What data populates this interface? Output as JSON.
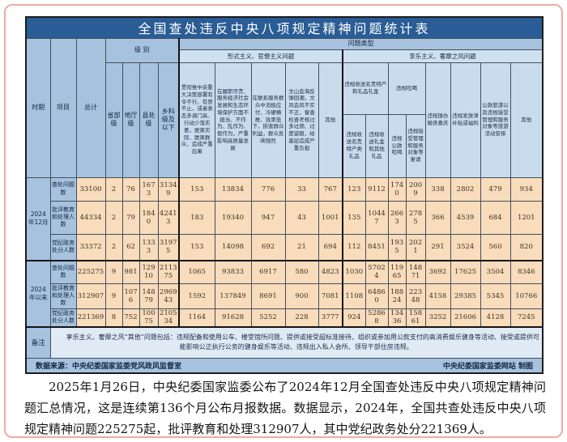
{
  "table": {
    "title": "全国查处违反中央八项规定精神问题统计表",
    "header": {
      "period": "时期",
      "item": "项目",
      "total": "总计",
      "level": "级 别",
      "problem_type": "问题类型",
      "levels": [
        "省部级",
        "地厅级",
        "县处级",
        "乡科级及以下"
      ],
      "formalism_group": "形式主义、官僚主义问题",
      "hedonism_group": "享乐主义、奢靡之风问题",
      "formalism_cols": [
        "贯彻党中央重大决策部署有令不行、有禁不止，或者表态多调门高、行动少落实差，脱离实际、脱离群众，造成严重后果",
        "在履职尽责、服务经济社会发展和生态环境保护方面不担当、不作为、乱作为、假作为，严重影响高质量发展",
        "在联系服务群众中消极应付、冷硬横推、效率低下，损害群众利益，群众反映强烈",
        "文山会海反弹回潮，文风会风不实不正，督查检查考核过多过频、过度留痕，给基层造成严重负担",
        "其他"
      ],
      "gift_group": "违规收送名贵特产和礼品礼金",
      "gift_cols": [
        "违规收送名贵特产类礼品",
        "违规收送礼金和其他礼品"
      ],
      "dining_group": "违规吃喝",
      "dining_cols": [
        "违规公款吃喝",
        "违规接受管理和服务对象等宴请"
      ],
      "hedonism_cols": [
        "违规操办婚丧喜庆",
        "违规发放津补贴或福利",
        "公款旅游以及违规接受管理和服务对象等旅游活动安排",
        "其他"
      ]
    },
    "row_groups": [
      {
        "period": "2024年12月",
        "rows": [
          {
            "label": "查处问题数",
            "values": [
              "33100",
              "2",
              "76",
              "1673",
              "31349",
              "153",
              "13834",
              "776",
              "33",
              "767",
              "123",
              "9112",
              "1740",
              "2009",
              "338",
              "2802",
              "479",
              "934"
            ]
          },
          {
            "label": "批评教育和处理人数",
            "values": [
              "44334",
              "2",
              "79",
              "1840",
              "42413",
              "183",
              "19340",
              "947",
              "43",
              "1001",
              "135",
              "10447",
              "2663",
              "2785",
              "366",
              "4539",
              "684",
              "1201"
            ]
          },
          {
            "label": "党纪政务处分人数",
            "values": [
              "33372",
              "2",
              "62",
              "1333",
              "31975",
              "153",
              "14098",
              "692",
              "21",
              "694",
              "112",
              "8451",
              "1935",
              "2021",
              "291",
              "3524",
              "560",
              "820"
            ]
          }
        ]
      },
      {
        "period": "2024年以来",
        "rows": [
          {
            "label": "查处问题数",
            "values": [
              "225275",
              "9",
              "981",
              "12910",
              "211375",
              "1065",
              "93833",
              "6917",
              "580",
              "4823",
              "1030",
              "57024",
              "11965",
              "14871",
              "3692",
              "17625",
              "3504",
              "8346"
            ]
          },
          {
            "label": "批评教育和处理人数",
            "values": [
              "312907",
              "9",
              "1076",
              "14879",
              "296943",
              "1592",
              "137849",
              "8691",
              "900",
              "7081",
              "1108",
              "64860",
              "18824",
              "22348",
              "4158",
              "29385",
              "5345",
              "10766"
            ]
          },
          {
            "label": "党纪政务处分人数",
            "values": [
              "221369",
              "8",
              "752",
              "10075",
              "210534",
              "1164",
              "91628",
              "5252",
              "228",
              "3777",
              "924",
              "52868",
              "13436",
              "15861",
              "3252",
              "21606",
              "4128",
              "7245"
            ]
          }
        ]
      }
    ],
    "note_label": "备注",
    "note_text": "享乐主义、奢靡之风“其他”问题包括：违规配备和使用公车、楼堂馆所问题、提供或接受超标准接待、组织或参加用公款支付的高消费娱乐健身等活动、接受或提供可能影响公正执行公务的健身娱乐等活动、违规出入私人会所、领导干部住房违规。",
    "source_left": "数据来源：中央纪委国家监委党风政风监督室",
    "source_right": "中央纪委国家监委网站 制图"
  },
  "article": {
    "paragraph": "2025年1月26日，中央纪委国家监委公布了2024年12月全国查处违反中央八项规定精神问题汇总情况，这是连续第136个月公布月报数据。数据显示，2024年，全国共查处违反中央八项规定精神问题225275起，批评教育和处理312907人，其中党纪政务处分221369人。"
  },
  "colors": {
    "title_bar": "#2a5c95",
    "header_mid": "#a7c2df",
    "header_light": "#cfe1f1",
    "detail_header": "#c9dcee",
    "data_cell": "#f9dcbb",
    "note_body": "#dfeaf5",
    "page_frame": "#f2a9a1"
  }
}
